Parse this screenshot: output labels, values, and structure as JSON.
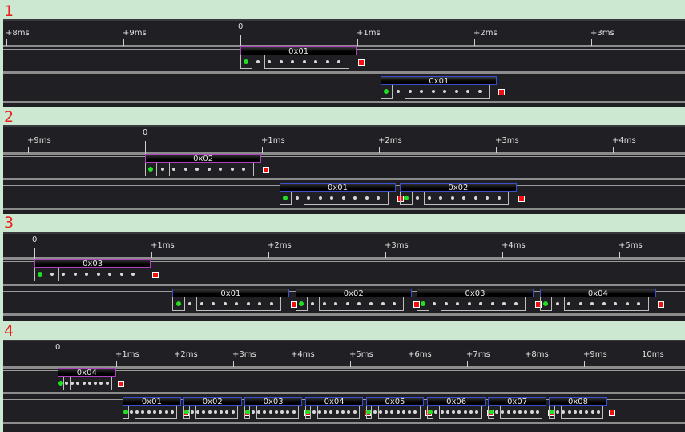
{
  "panels": [
    {
      "label": "1",
      "ticks": [
        {
          "t": -2,
          "label": "+8ms"
        },
        {
          "t": -1,
          "label": "+9ms"
        },
        {
          "t": 0,
          "label": "0"
        },
        {
          "t": 1,
          "label": "+1ms"
        },
        {
          "t": 2,
          "label": "+2ms"
        },
        {
          "t": 3,
          "label": "+3ms"
        }
      ],
      "channels": [
        {
          "color": "#b040c0",
          "frames": [
            {
              "t": 0,
              "value": "0x01"
            }
          ]
        },
        {
          "color": "#3a4fd0",
          "frames": [
            {
              "t": 1.2,
              "value": "0x01"
            }
          ]
        }
      ]
    },
    {
      "label": "2",
      "ticks": [
        {
          "t": -1,
          "label": "+9ms"
        },
        {
          "t": 0,
          "label": "0"
        },
        {
          "t": 1,
          "label": "+1ms"
        },
        {
          "t": 2,
          "label": "+2ms"
        },
        {
          "t": 3,
          "label": "+3ms"
        },
        {
          "t": 4,
          "label": "+4ms"
        }
      ],
      "channels": [
        {
          "color": "#b040c0",
          "frames": [
            {
              "t": 0,
              "value": "0x02"
            }
          ]
        },
        {
          "color": "#3a4fd0",
          "frames": [
            {
              "t": 1.15,
              "value": "0x01"
            },
            {
              "t": 2.18,
              "value": "0x02"
            }
          ]
        }
      ]
    },
    {
      "label": "3",
      "ticks": [
        {
          "t": 0,
          "label": "0"
        },
        {
          "t": 1,
          "label": "+1ms"
        },
        {
          "t": 2,
          "label": "+2ms"
        },
        {
          "t": 3,
          "label": "+3ms"
        },
        {
          "t": 4,
          "label": "+4ms"
        },
        {
          "t": 5,
          "label": "+5ms"
        }
      ],
      "channels": [
        {
          "color": "#b040c0",
          "frames": [
            {
              "t": 0,
              "value": "0x03"
            }
          ]
        },
        {
          "color": "#3a4fd0",
          "frames": [
            {
              "t": 1.18,
              "value": "0x01"
            },
            {
              "t": 2.23,
              "value": "0x02"
            },
            {
              "t": 3.27,
              "value": "0x03"
            },
            {
              "t": 4.32,
              "value": "0x04"
            }
          ]
        }
      ]
    },
    {
      "label": "4",
      "ticks": [
        {
          "t": 0,
          "label": "0"
        },
        {
          "t": 1,
          "label": "+1ms"
        },
        {
          "t": 2,
          "label": "+2ms"
        },
        {
          "t": 3,
          "label": "+3ms"
        },
        {
          "t": 4,
          "label": "+4ms"
        },
        {
          "t": 5,
          "label": "+5ms"
        },
        {
          "t": 6,
          "label": "+6ms"
        },
        {
          "t": 7,
          "label": "+7ms"
        },
        {
          "t": 8,
          "label": "+8ms"
        },
        {
          "t": 9,
          "label": "+9ms"
        },
        {
          "t": 10,
          "label": "10ms"
        }
      ],
      "channels": [
        {
          "color": "#b040c0",
          "frames": [
            {
              "t": 0,
              "value": "0x04"
            }
          ]
        },
        {
          "color": "#3a4fd0",
          "frames": [
            {
              "t": 1.11,
              "value": "0x01"
            },
            {
              "t": 2.15,
              "value": "0x02"
            },
            {
              "t": 3.19,
              "value": "0x03"
            },
            {
              "t": 4.23,
              "value": "0x04"
            },
            {
              "t": 5.27,
              "value": "0x05"
            },
            {
              "t": 6.32,
              "value": "0x06"
            },
            {
              "t": 7.36,
              "value": "0x07"
            },
            {
              "t": 8.4,
              "value": "0x08"
            }
          ]
        }
      ]
    }
  ]
}
